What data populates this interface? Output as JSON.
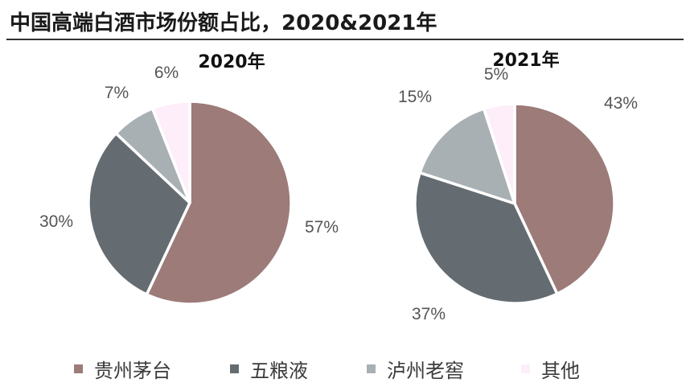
{
  "header": {
    "title": "中国高端白酒市场份额占比，2020&2021年"
  },
  "chart_data": [
    {
      "type": "pie",
      "title": "2020年",
      "series": [
        {
          "name": "贵州茅台",
          "value": 57,
          "label": "57%"
        },
        {
          "name": "五粮液",
          "value": 30,
          "label": "30%"
        },
        {
          "name": "泸州老窖",
          "value": 7,
          "label": "7%"
        },
        {
          "name": "其他",
          "value": 6,
          "label": "6%"
        }
      ]
    },
    {
      "type": "pie",
      "title": "2021年",
      "series": [
        {
          "name": "贵州茅台",
          "value": 43,
          "label": "43%"
        },
        {
          "name": "五粮液",
          "value": 37,
          "label": "37%"
        },
        {
          "name": "泸州老窖",
          "value": 15,
          "label": "15%"
        },
        {
          "name": "其他",
          "value": 5,
          "label": "5%"
        }
      ]
    }
  ],
  "legend": {
    "items": [
      {
        "label": "贵州茅台",
        "color": "#9c7b79"
      },
      {
        "label": "五粮液",
        "color": "#646c71"
      },
      {
        "label": "泸州老窖",
        "color": "#a9b0b4"
      },
      {
        "label": "其他",
        "color": "#fdeefa"
      }
    ]
  }
}
